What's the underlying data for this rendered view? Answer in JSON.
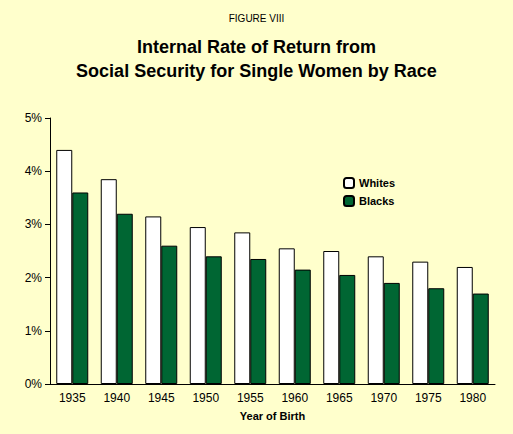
{
  "chart_data": {
    "type": "bar",
    "subtitle": "FIGURE VIII",
    "title": "Internal Rate of Return from\nSocial Security for Single Women by Race",
    "x_label": "Year of Birth",
    "categories": [
      "1935",
      "1940",
      "1945",
      "1950",
      "1955",
      "1960",
      "1965",
      "1970",
      "1975",
      "1980"
    ],
    "series": [
      {
        "name": "Whites",
        "color": "#ffffff",
        "values": [
          4.4,
          3.85,
          3.15,
          2.95,
          2.85,
          2.55,
          2.5,
          2.4,
          2.3,
          2.2
        ]
      },
      {
        "name": "Blacks",
        "color": "#006633",
        "values": [
          3.6,
          3.2,
          2.6,
          2.4,
          2.35,
          2.15,
          2.05,
          1.9,
          1.8,
          1.7
        ]
      }
    ],
    "ylim": [
      0,
      5
    ],
    "yticks": [
      {
        "value": 0,
        "label": "0%"
      },
      {
        "value": 1,
        "label": "1%"
      },
      {
        "value": 2,
        "label": "2%"
      },
      {
        "value": 3,
        "label": "3%"
      },
      {
        "value": 4,
        "label": "4%"
      },
      {
        "value": 5,
        "label": "5%"
      }
    ],
    "grid": false,
    "legend": "right"
  }
}
